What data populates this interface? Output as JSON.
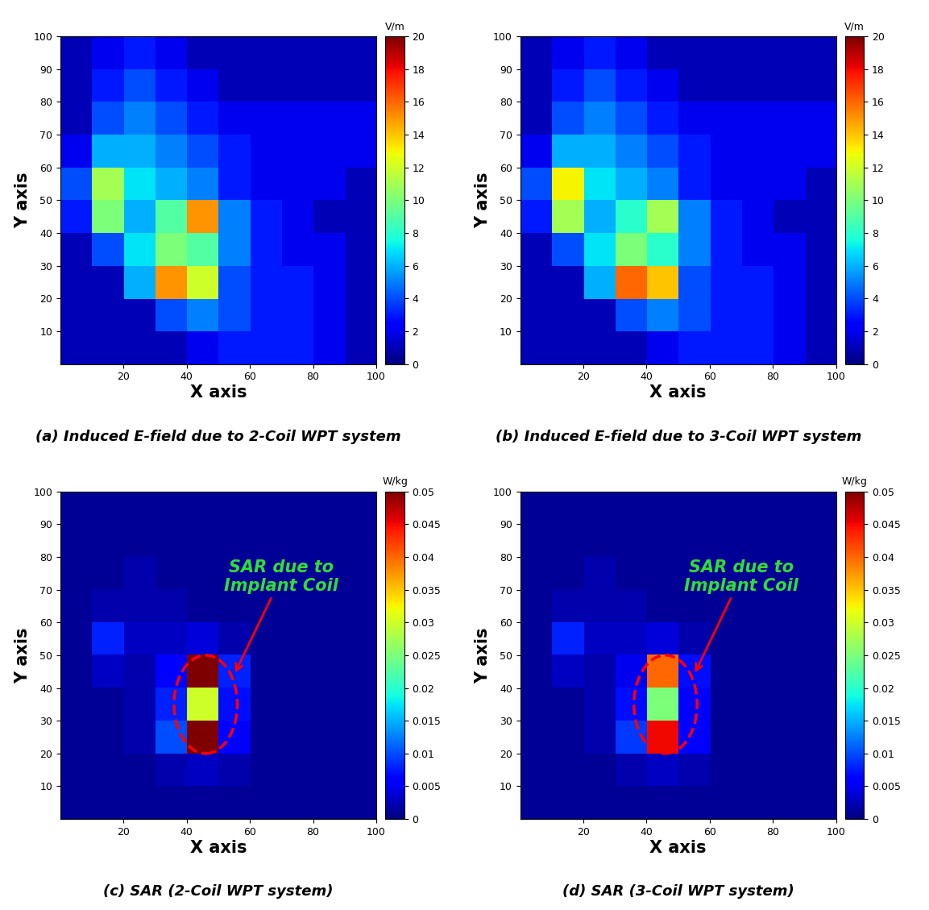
{
  "chart_data": [
    {
      "type": "heatmap",
      "title": "(a) Induced E-field due to 2-Coil WPT system",
      "x_label": "X axis",
      "y_label": "Y axis",
      "xlim": [
        0,
        100
      ],
      "ylim": [
        0,
        100
      ],
      "xticks": [
        20,
        40,
        60,
        80,
        100
      ],
      "yticks": [
        10,
        20,
        30,
        40,
        50,
        60,
        70,
        80,
        90,
        100
      ],
      "colorbar_label": "V/m",
      "colorbar_range": [
        0,
        20
      ],
      "colorbar_ticks": [
        0,
        2,
        4,
        6,
        8,
        10,
        12,
        14,
        16,
        18,
        20
      ],
      "cells": [
        [
          1,
          2,
          3,
          2,
          1,
          1,
          1,
          1,
          1,
          1
        ],
        [
          1,
          3,
          4,
          3,
          2,
          1,
          1,
          1,
          1,
          1
        ],
        [
          1,
          4,
          5,
          4,
          3,
          2,
          2,
          2,
          2,
          2
        ],
        [
          2,
          6,
          6,
          5,
          4,
          3,
          2,
          2,
          2,
          2
        ],
        [
          4,
          11,
          7,
          6,
          5,
          3,
          2,
          2,
          2,
          1
        ],
        [
          3,
          10,
          6,
          9,
          15,
          5,
          3,
          2,
          1,
          1
        ],
        [
          1,
          4,
          7,
          10,
          9,
          5,
          3,
          2,
          2,
          1
        ],
        [
          1,
          1,
          6,
          15,
          12,
          4,
          3,
          3,
          2,
          1
        ],
        [
          1,
          1,
          1,
          4,
          5,
          4,
          3,
          3,
          2,
          1
        ],
        [
          1,
          1,
          1,
          1,
          2,
          3,
          3,
          3,
          2,
          1
        ]
      ]
    },
    {
      "type": "heatmap",
      "title": "(b) Induced E-field due to 3-Coil WPT system",
      "x_label": "X axis",
      "y_label": "Y axis",
      "xlim": [
        0,
        100
      ],
      "ylim": [
        0,
        100
      ],
      "xticks": [
        20,
        40,
        60,
        80,
        100
      ],
      "yticks": [
        10,
        20,
        30,
        40,
        50,
        60,
        70,
        80,
        90,
        100
      ],
      "colorbar_label": "V/m",
      "colorbar_range": [
        0,
        20
      ],
      "colorbar_ticks": [
        0,
        2,
        4,
        6,
        8,
        10,
        12,
        14,
        16,
        18,
        20
      ],
      "cells": [
        [
          1,
          2,
          3,
          2,
          1,
          1,
          1,
          1,
          1,
          1
        ],
        [
          1,
          3,
          4,
          3,
          2,
          1,
          1,
          1,
          1,
          1
        ],
        [
          1,
          4,
          5,
          4,
          3,
          2,
          2,
          2,
          2,
          2
        ],
        [
          2,
          6,
          6,
          5,
          4,
          3,
          2,
          2,
          2,
          2
        ],
        [
          4,
          13,
          7,
          6,
          5,
          3,
          2,
          2,
          2,
          1
        ],
        [
          3,
          11,
          6,
          8,
          11,
          5,
          3,
          2,
          1,
          1
        ],
        [
          1,
          4,
          7,
          10,
          8,
          5,
          3,
          2,
          2,
          1
        ],
        [
          1,
          1,
          6,
          16,
          14,
          4,
          3,
          3,
          2,
          1
        ],
        [
          1,
          1,
          1,
          4,
          5,
          4,
          3,
          3,
          2,
          1
        ],
        [
          1,
          1,
          1,
          1,
          2,
          3,
          3,
          3,
          2,
          1
        ]
      ]
    },
    {
      "type": "heatmap",
      "title": "(c) SAR (2-Coil WPT system)",
      "x_label": "X axis",
      "y_label": "Y axis",
      "xlim": [
        0,
        100
      ],
      "ylim": [
        0,
        100
      ],
      "xticks": [
        20,
        40,
        60,
        80,
        100
      ],
      "yticks": [
        10,
        20,
        30,
        40,
        50,
        60,
        70,
        80,
        90,
        100
      ],
      "colorbar_label": "W/kg",
      "colorbar_range": [
        0,
        0.05
      ],
      "colorbar_ticks": [
        0,
        0.005,
        0.01,
        0.015,
        0.02,
        0.025,
        0.03,
        0.035,
        0.04,
        0.045,
        0.05
      ],
      "annotation": "SAR due to\nImplant Coil",
      "cells": [
        [
          0.001,
          0.001,
          0.001,
          0.001,
          0.001,
          0.001,
          0.001,
          0.001,
          0.001,
          0.001
        ],
        [
          0.001,
          0.001,
          0.001,
          0.001,
          0.001,
          0.001,
          0.001,
          0.001,
          0.001,
          0.001
        ],
        [
          0.001,
          0.001,
          0.002,
          0.001,
          0.001,
          0.001,
          0.001,
          0.001,
          0.001,
          0.001
        ],
        [
          0.001,
          0.002,
          0.002,
          0.002,
          0.001,
          0.001,
          0.001,
          0.001,
          0.001,
          0.001
        ],
        [
          0.001,
          0.008,
          0.003,
          0.003,
          0.004,
          0.002,
          0.001,
          0.001,
          0.001,
          0.001
        ],
        [
          0.001,
          0.003,
          0.002,
          0.006,
          0.05,
          0.008,
          0.001,
          0.001,
          0.001,
          0.001
        ],
        [
          0.001,
          0.001,
          0.002,
          0.008,
          0.03,
          0.007,
          0.001,
          0.001,
          0.001,
          0.001
        ],
        [
          0.001,
          0.001,
          0.002,
          0.01,
          0.05,
          0.006,
          0.001,
          0.001,
          0.001,
          0.001
        ],
        [
          0.001,
          0.001,
          0.001,
          0.002,
          0.003,
          0.002,
          0.001,
          0.001,
          0.001,
          0.001
        ],
        [
          0.001,
          0.001,
          0.001,
          0.001,
          0.001,
          0.001,
          0.001,
          0.001,
          0.001,
          0.001
        ]
      ]
    },
    {
      "type": "heatmap",
      "title": "(d) SAR (3-Coil WPT system)",
      "x_label": "X axis",
      "y_label": "Y axis",
      "xlim": [
        0,
        100
      ],
      "ylim": [
        0,
        100
      ],
      "xticks": [
        20,
        40,
        60,
        80,
        100
      ],
      "yticks": [
        10,
        20,
        30,
        40,
        50,
        60,
        70,
        80,
        90,
        100
      ],
      "colorbar_label": "W/kg",
      "colorbar_range": [
        0,
        0.05
      ],
      "colorbar_ticks": [
        0,
        0.005,
        0.01,
        0.015,
        0.02,
        0.025,
        0.03,
        0.035,
        0.04,
        0.045,
        0.05
      ],
      "annotation": "SAR due to\nImplant Coil",
      "cells": [
        [
          0.001,
          0.001,
          0.001,
          0.001,
          0.001,
          0.001,
          0.001,
          0.001,
          0.001,
          0.001
        ],
        [
          0.001,
          0.001,
          0.001,
          0.001,
          0.001,
          0.001,
          0.001,
          0.001,
          0.001,
          0.001
        ],
        [
          0.001,
          0.001,
          0.002,
          0.001,
          0.001,
          0.001,
          0.001,
          0.001,
          0.001,
          0.001
        ],
        [
          0.001,
          0.002,
          0.002,
          0.002,
          0.001,
          0.001,
          0.001,
          0.001,
          0.001,
          0.001
        ],
        [
          0.001,
          0.008,
          0.003,
          0.003,
          0.004,
          0.002,
          0.001,
          0.001,
          0.001,
          0.001
        ],
        [
          0.001,
          0.003,
          0.002,
          0.005,
          0.04,
          0.007,
          0.001,
          0.001,
          0.001,
          0.001
        ],
        [
          0.001,
          0.001,
          0.002,
          0.007,
          0.025,
          0.006,
          0.001,
          0.001,
          0.001,
          0.001
        ],
        [
          0.001,
          0.001,
          0.002,
          0.009,
          0.045,
          0.006,
          0.001,
          0.001,
          0.001,
          0.001
        ],
        [
          0.001,
          0.001,
          0.001,
          0.002,
          0.003,
          0.002,
          0.001,
          0.001,
          0.001,
          0.001
        ],
        [
          0.001,
          0.001,
          0.001,
          0.001,
          0.001,
          0.001,
          0.001,
          0.001,
          0.001,
          0.001
        ]
      ]
    }
  ]
}
